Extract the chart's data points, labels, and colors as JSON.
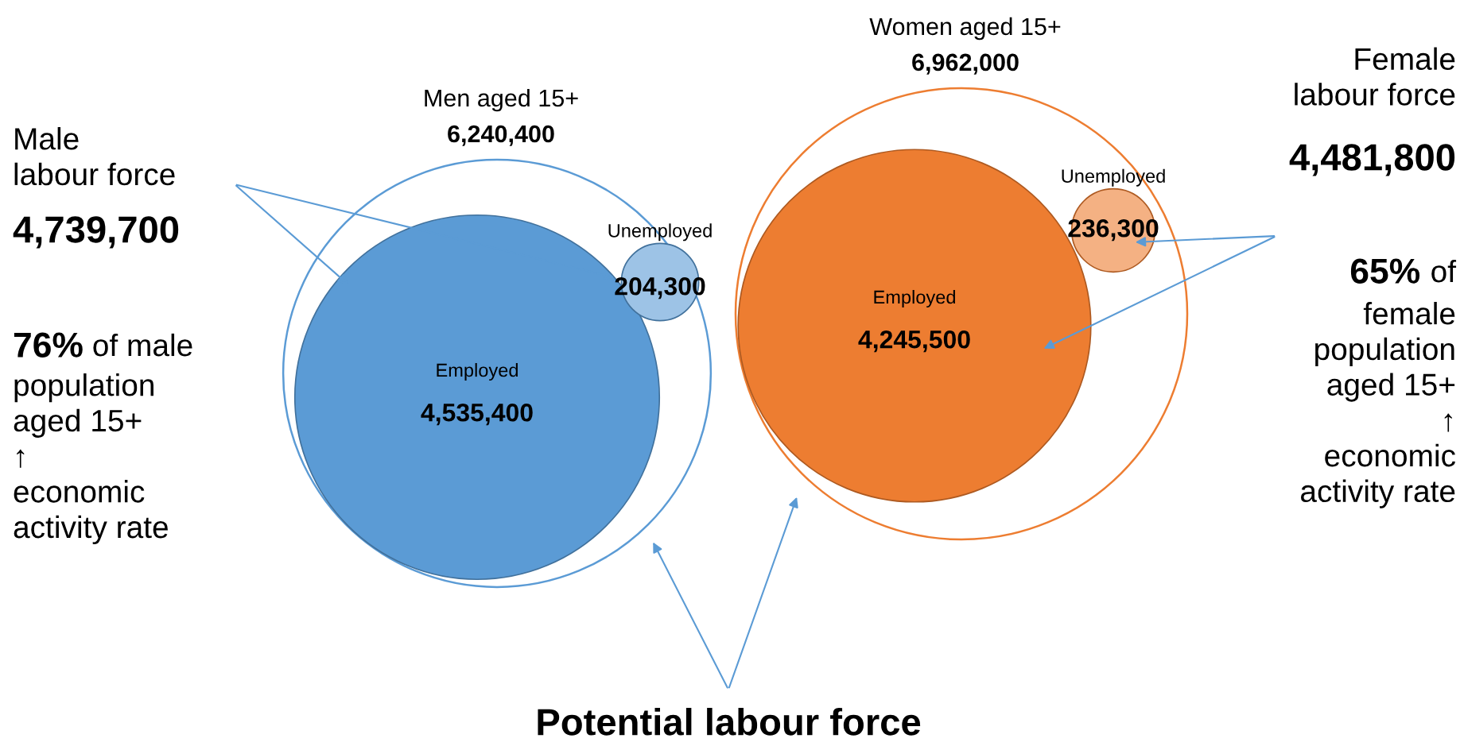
{
  "chart_data": {
    "type": "other",
    "categories": [
      "Men aged 15+",
      "Employed",
      "Unemployed",
      "Women aged 15+",
      "Employed",
      "Unemployed"
    ],
    "values": [
      6240400,
      4535400,
      204300,
      6962000,
      4245500,
      236300
    ],
    "colors": [
      "#5b9bd5",
      "#5b9bd5",
      "#9dc3e6",
      "#ed7d31",
      "#ed7d31",
      "#f4b183"
    ],
    "value_labels": [
      "6,240,400",
      "4,535,400",
      "204,300",
      "6,962,000",
      "4,245,500",
      "236,300"
    ],
    "annotations": [
      "Male\nlabour force",
      "4,739,700",
      "76%",
      "of male",
      "population\naged 15+\n↑\neconomic\nactivity rate",
      "Female\nlabour force",
      "4,481,800",
      "65%",
      "of",
      "female\npopulation\naged 15+\n↑\neconomic\nactivity rate",
      "Potential labour force"
    ]
  }
}
